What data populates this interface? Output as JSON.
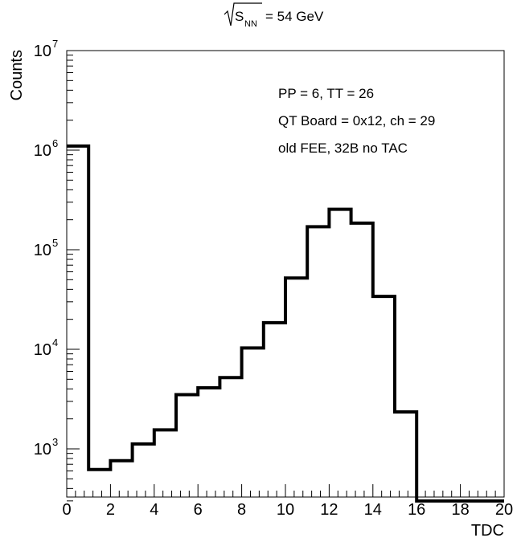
{
  "chart_data": {
    "type": "histogram",
    "title": {
      "symbol_radicand": "S",
      "symbol_subscript": "NN",
      "suffix": "= 54 GeV"
    },
    "xlabel": "TDC",
    "ylabel": "Counts",
    "xlim": [
      0,
      20
    ],
    "ylim": [
      300,
      10000000
    ],
    "y_scale": "log",
    "grid": false,
    "legend": "none",
    "x_ticks": [
      "0",
      "2",
      "4",
      "6",
      "8",
      "10",
      "12",
      "14",
      "16",
      "18",
      "20"
    ],
    "y_ticks": [
      {
        "base": "10",
        "exp": "3"
      },
      {
        "base": "10",
        "exp": "4"
      },
      {
        "base": "10",
        "exp": "5"
      },
      {
        "base": "10",
        "exp": "6"
      },
      {
        "base": "10",
        "exp": "7"
      }
    ],
    "annotations": [
      "PP = 6, TT = 26",
      "QT Board = 0x12, ch = 29",
      "old FEE, 32B no TAC"
    ],
    "bin_edges": [
      0,
      1,
      2,
      3,
      4,
      5,
      6,
      7,
      8,
      9,
      10,
      11,
      12,
      13,
      14,
      15,
      16,
      17,
      18,
      19,
      20
    ],
    "bin_values": [
      1100000,
      620,
      760,
      1120,
      1550,
      3500,
      4100,
      5200,
      10300,
      18500,
      52000,
      170000,
      255000,
      185000,
      34000,
      2350,
      300,
      300,
      300,
      300
    ],
    "line_color": "#000000"
  }
}
